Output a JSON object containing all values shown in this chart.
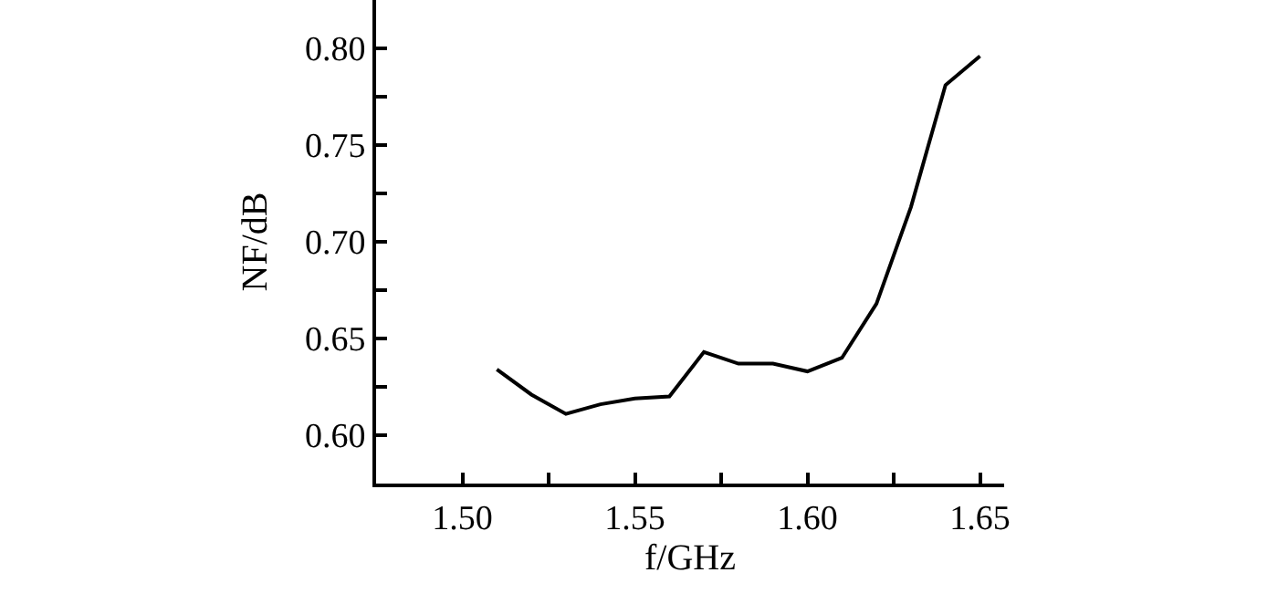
{
  "chart_data": {
    "type": "line",
    "xlabel": "f/GHz",
    "ylabel": "NF/dB",
    "x": [
      1.51,
      1.52,
      1.53,
      1.54,
      1.55,
      1.56,
      1.57,
      1.58,
      1.59,
      1.6,
      1.61,
      1.62,
      1.63,
      1.64,
      1.65
    ],
    "series": [
      {
        "color": "#000000",
        "values": [
          0.634,
          0.621,
          0.611,
          0.616,
          0.619,
          0.62,
          0.643,
          0.637,
          0.637,
          0.633,
          0.64,
          0.668,
          0.718,
          0.781,
          0.796
        ]
      }
    ],
    "xlim": [
      1.475,
      1.657
    ],
    "ylim": [
      0.575,
      0.825
    ],
    "xticks": [
      {
        "value": 1.5,
        "label": "1.50"
      },
      {
        "value": 1.525,
        "label": null
      },
      {
        "value": 1.55,
        "label": "1.55"
      },
      {
        "value": 1.575,
        "label": null
      },
      {
        "value": 1.6,
        "label": "1.60"
      },
      {
        "value": 1.625,
        "label": null
      },
      {
        "value": 1.65,
        "label": "1.65"
      }
    ],
    "yticks": [
      {
        "value": 0.6,
        "label": "0.60"
      },
      {
        "value": 0.625,
        "label": null
      },
      {
        "value": 0.65,
        "label": "0.65"
      },
      {
        "value": 0.675,
        "label": null
      },
      {
        "value": 0.7,
        "label": "0.70"
      },
      {
        "value": 0.725,
        "label": null
      },
      {
        "value": 0.75,
        "label": "0.75"
      },
      {
        "value": 0.775,
        "label": null
      },
      {
        "value": 0.8,
        "label": "0.80"
      }
    ],
    "marker": "none",
    "line_style": "solid"
  }
}
